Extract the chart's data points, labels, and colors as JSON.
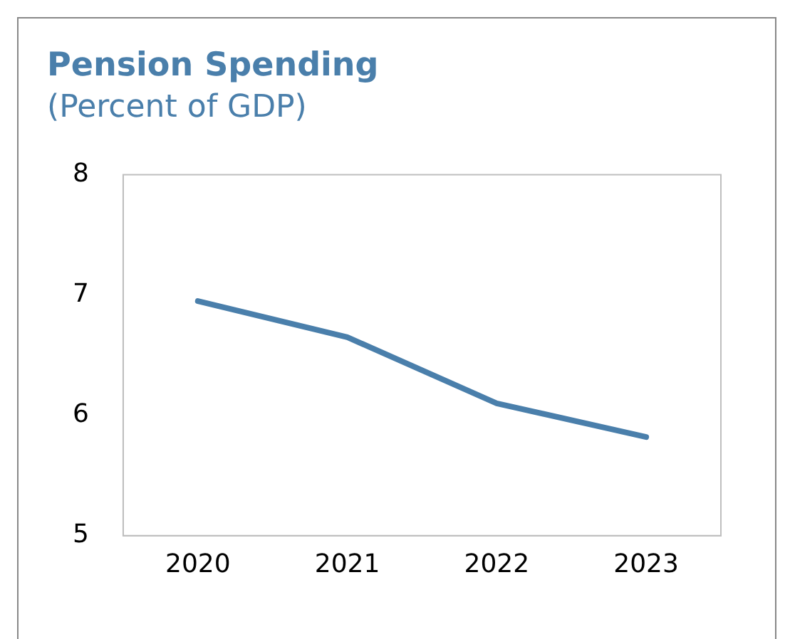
{
  "chart_data": {
    "type": "line",
    "title": "Pension Spending",
    "subtitle": "(Percent of GDP)",
    "categories": [
      "2020",
      "2021",
      "2022",
      "2023"
    ],
    "series": [
      {
        "color": "#4a7fab",
        "values": [
          6.95,
          6.65,
          6.1,
          5.82
        ]
      }
    ],
    "ylim": [
      5,
      8
    ],
    "yticks": [
      5,
      6,
      7,
      8
    ],
    "grid": false,
    "legend": false,
    "marker": "none",
    "line_style": "solid"
  }
}
